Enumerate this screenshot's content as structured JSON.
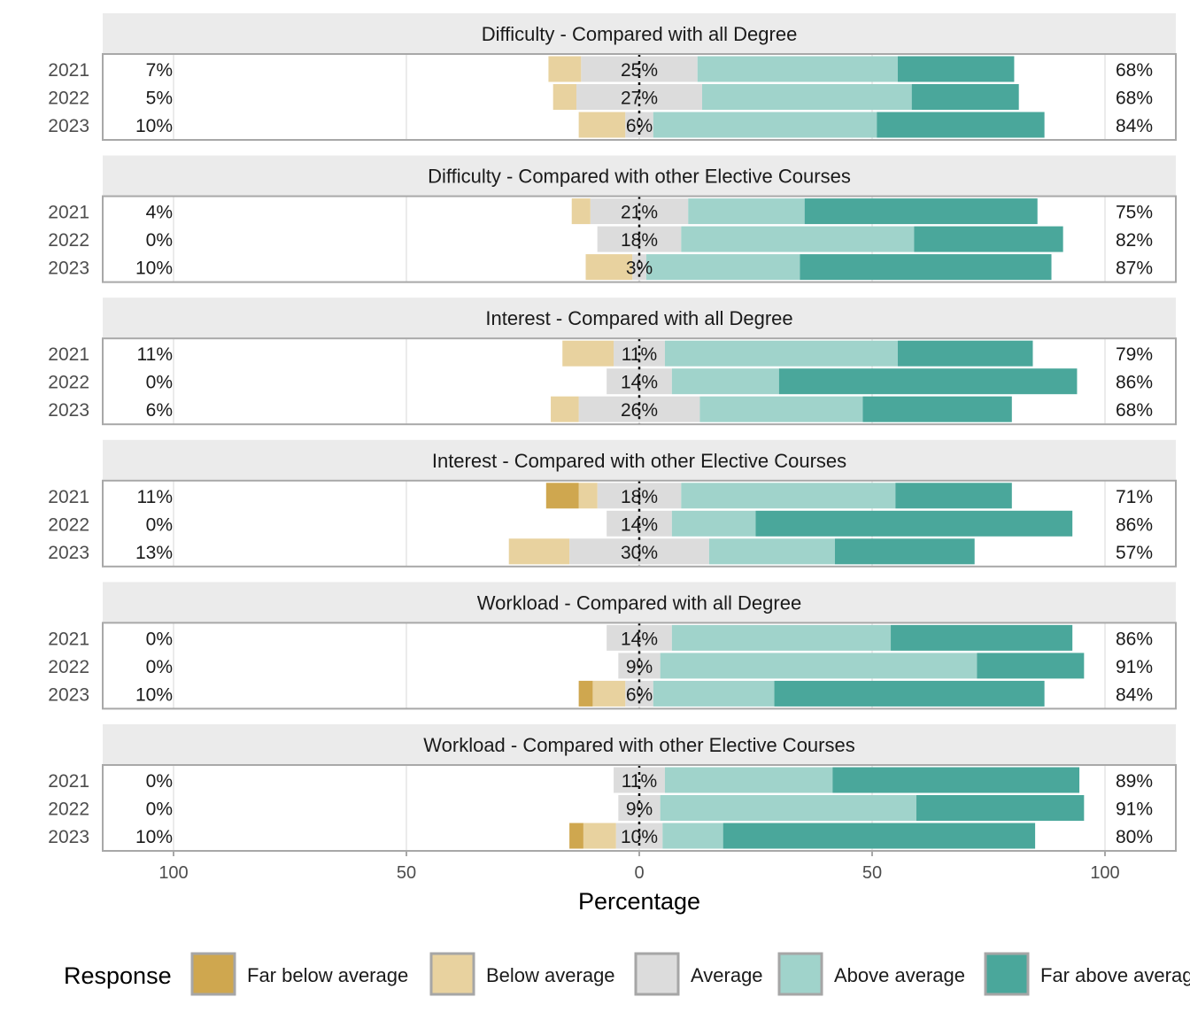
{
  "chart_data": {
    "type": "bar",
    "subtype": "diverging-stacked-likert",
    "xlabel": "Percentage",
    "xlim": [
      -100,
      100
    ],
    "x_ticks": [
      -100,
      -50,
      0,
      50,
      100
    ],
    "x_tick_labels": [
      "100",
      "50",
      "0",
      "50",
      "100"
    ],
    "legend": {
      "title": "Response",
      "position": "bottom",
      "entries": [
        "Far below average",
        "Below average",
        "Average",
        "Above average",
        "Far above average"
      ]
    },
    "levels": [
      "Far below average",
      "Below average",
      "Average",
      "Above average",
      "Far above average"
    ],
    "colors": {
      "Far below average": "#cfa74f",
      "Below average": "#e8d29f",
      "Average": "#dcdcdc",
      "Above average": "#a0d3cb",
      "Far above average": "#4aa79b"
    },
    "panels": [
      {
        "title": "Difficulty - Compared with all Degree",
        "rows": [
          {
            "year": "2021",
            "values": [
              0,
              7,
              25,
              43,
              25
            ],
            "low_label": "7%",
            "mid_label": "25%",
            "high_label": "68%"
          },
          {
            "year": "2022",
            "values": [
              0,
              5,
              27,
              45,
              23
            ],
            "low_label": "5%",
            "mid_label": "27%",
            "high_label": "68%"
          },
          {
            "year": "2023",
            "values": [
              0,
              10,
              6,
              48,
              36
            ],
            "low_label": "10%",
            "mid_label": "6%",
            "high_label": "84%"
          }
        ]
      },
      {
        "title": "Difficulty - Compared with other Elective Courses",
        "rows": [
          {
            "year": "2021",
            "values": [
              0,
              4,
              21,
              25,
              50
            ],
            "low_label": "4%",
            "mid_label": "21%",
            "high_label": "75%"
          },
          {
            "year": "2022",
            "values": [
              0,
              0,
              18,
              50,
              32
            ],
            "low_label": "0%",
            "mid_label": "18%",
            "high_label": "82%"
          },
          {
            "year": "2023",
            "values": [
              0,
              10,
              3,
              33,
              54
            ],
            "low_label": "10%",
            "mid_label": "3%",
            "high_label": "87%"
          }
        ]
      },
      {
        "title": "Interest - Compared with all Degree",
        "rows": [
          {
            "year": "2021",
            "values": [
              0,
              11,
              11,
              50,
              29
            ],
            "low_label": "11%",
            "mid_label": "11%",
            "high_label": "79%"
          },
          {
            "year": "2022",
            "values": [
              0,
              0,
              14,
              23,
              64
            ],
            "low_label": "0%",
            "mid_label": "14%",
            "high_label": "86%"
          },
          {
            "year": "2023",
            "values": [
              0,
              6,
              26,
              35,
              32
            ],
            "low_label": "6%",
            "mid_label": "26%",
            "high_label": "68%"
          }
        ]
      },
      {
        "title": "Interest - Compared with other Elective Courses",
        "rows": [
          {
            "year": "2021",
            "values": [
              7,
              4,
              18,
              46,
              25
            ],
            "low_label": "11%",
            "mid_label": "18%",
            "high_label": "71%"
          },
          {
            "year": "2022",
            "values": [
              0,
              0,
              14,
              18,
              68
            ],
            "low_label": "0%",
            "mid_label": "14%",
            "high_label": "86%"
          },
          {
            "year": "2023",
            "values": [
              0,
              13,
              30,
              27,
              30
            ],
            "low_label": "13%",
            "mid_label": "30%",
            "high_label": "57%"
          }
        ]
      },
      {
        "title": "Workload - Compared with all Degree",
        "rows": [
          {
            "year": "2021",
            "values": [
              0,
              0,
              14,
              47,
              39
            ],
            "low_label": "0%",
            "mid_label": "14%",
            "high_label": "86%"
          },
          {
            "year": "2022",
            "values": [
              0,
              0,
              9,
              68,
              23
            ],
            "low_label": "0%",
            "mid_label": "9%",
            "high_label": "91%"
          },
          {
            "year": "2023",
            "values": [
              3,
              7,
              6,
              26,
              58
            ],
            "low_label": "10%",
            "mid_label": "6%",
            "high_label": "84%"
          }
        ]
      },
      {
        "title": "Workload - Compared with other Elective Courses",
        "rows": [
          {
            "year": "2021",
            "values": [
              0,
              0,
              11,
              36,
              53
            ],
            "low_label": "0%",
            "mid_label": "11%",
            "high_label": "89%"
          },
          {
            "year": "2022",
            "values": [
              0,
              0,
              9,
              55,
              36
            ],
            "low_label": "0%",
            "mid_label": "9%",
            "high_label": "91%"
          },
          {
            "year": "2023",
            "values": [
              3,
              7,
              10,
              13,
              67
            ],
            "low_label": "10%",
            "mid_label": "10%",
            "high_label": "80%"
          }
        ]
      }
    ]
  }
}
